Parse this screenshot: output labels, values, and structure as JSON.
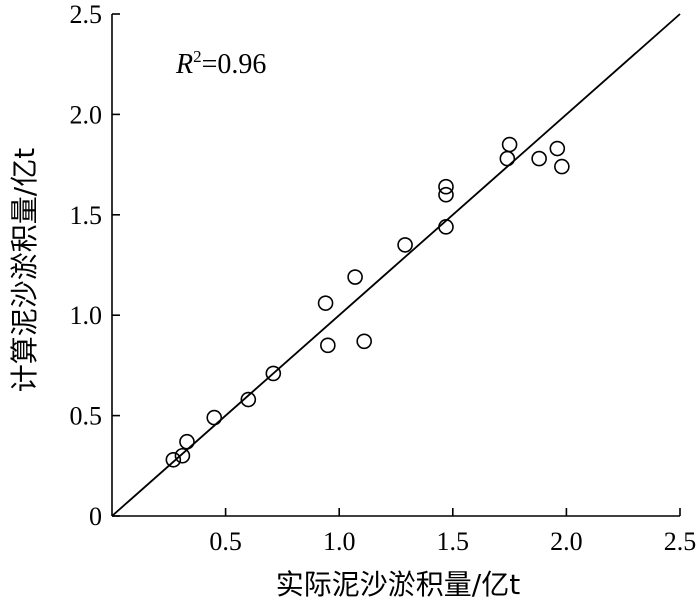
{
  "chart_data": {
    "type": "scatter",
    "xlabel": "实际泥沙淤积量/亿t",
    "ylabel": "计算泥沙淤积量/亿t",
    "xlim": [
      0,
      2.5
    ],
    "ylim": [
      0,
      2.5
    ],
    "x_ticks": [
      {
        "value": 0.5,
        "label": "0.5"
      },
      {
        "value": 1.0,
        "label": "1.0"
      },
      {
        "value": 1.5,
        "label": "1.5"
      },
      {
        "value": 2.0,
        "label": "2.0"
      },
      {
        "value": 2.5,
        "label": "2.5"
      }
    ],
    "y_ticks": [
      {
        "value": 0,
        "label": "0"
      },
      {
        "value": 0.5,
        "label": "0.5"
      },
      {
        "value": 1.0,
        "label": "1.0"
      },
      {
        "value": 1.5,
        "label": "1.5"
      },
      {
        "value": 2.0,
        "label": "2.0"
      },
      {
        "value": 2.5,
        "label": "2.5"
      }
    ],
    "reference_line": {
      "x": [
        0,
        2.5
      ],
      "y": [
        0,
        2.5
      ]
    },
    "annotation": {
      "symbol": "R",
      "superscript": "2",
      "value": "=0.96"
    },
    "grid": false,
    "marker": "open-circle",
    "points": [
      {
        "x": 0.27,
        "y": 0.28
      },
      {
        "x": 0.31,
        "y": 0.3
      },
      {
        "x": 0.33,
        "y": 0.37
      },
      {
        "x": 0.45,
        "y": 0.49
      },
      {
        "x": 0.6,
        "y": 0.58
      },
      {
        "x": 0.71,
        "y": 0.71
      },
      {
        "x": 0.94,
        "y": 1.06
      },
      {
        "x": 0.95,
        "y": 0.85
      },
      {
        "x": 1.07,
        "y": 1.19
      },
      {
        "x": 1.11,
        "y": 0.87
      },
      {
        "x": 1.29,
        "y": 1.35
      },
      {
        "x": 1.47,
        "y": 1.64
      },
      {
        "x": 1.47,
        "y": 1.6
      },
      {
        "x": 1.47,
        "y": 1.44
      },
      {
        "x": 1.74,
        "y": 1.78
      },
      {
        "x": 1.75,
        "y": 1.85
      },
      {
        "x": 1.88,
        "y": 1.78
      },
      {
        "x": 1.96,
        "y": 1.83
      },
      {
        "x": 1.98,
        "y": 1.74
      }
    ]
  }
}
